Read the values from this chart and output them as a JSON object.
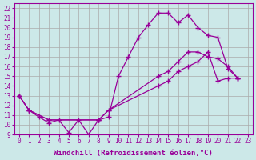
{
  "background_color": "#cce8e8",
  "grid_color": "#aaaaaa",
  "line_color": "#990099",
  "marker": "+",
  "markersize": 4,
  "linewidth": 0.9,
  "xlabel": "Windchill (Refroidissement éolien,°C)",
  "xlabel_fontsize": 6.5,
  "tick_fontsize": 5.5,
  "xlim": [
    -0.5,
    23.5
  ],
  "ylim": [
    9,
    22.5
  ],
  "yticks": [
    9,
    10,
    11,
    12,
    13,
    14,
    15,
    16,
    17,
    18,
    19,
    20,
    21,
    22
  ],
  "xticks": [
    0,
    1,
    2,
    3,
    4,
    5,
    6,
    7,
    8,
    9,
    10,
    11,
    12,
    13,
    14,
    15,
    16,
    17,
    18,
    19,
    20,
    21,
    22,
    23
  ],
  "series1_x": [
    0,
    1,
    2,
    3,
    4,
    5,
    6,
    7,
    8,
    9,
    10,
    11,
    12,
    13,
    14,
    15,
    16,
    17,
    18,
    19,
    20,
    21,
    22
  ],
  "series1_y": [
    13,
    11.5,
    10.8,
    10.2,
    10.5,
    9.2,
    10.5,
    9.0,
    10.5,
    10.8,
    15.0,
    17.0,
    19.0,
    20.3,
    21.5,
    21.5,
    20.5,
    21.3,
    20.0,
    19.2,
    19.0,
    15.8,
    14.8
  ],
  "series2_x": [
    0,
    1,
    3,
    8,
    9,
    14,
    15,
    16,
    17,
    18,
    19,
    20,
    21,
    22
  ],
  "series2_y": [
    13,
    11.5,
    10.5,
    10.5,
    11.5,
    15.0,
    15.5,
    16.5,
    17.5,
    17.5,
    17.0,
    16.8,
    16.0,
    14.8
  ],
  "series3_x": [
    0,
    1,
    3,
    8,
    9,
    14,
    15,
    16,
    17,
    18,
    19,
    20,
    21,
    22
  ],
  "series3_y": [
    13,
    11.5,
    10.5,
    10.5,
    11.5,
    14.0,
    14.5,
    15.5,
    16.0,
    16.5,
    17.5,
    14.5,
    14.8,
    14.8
  ]
}
